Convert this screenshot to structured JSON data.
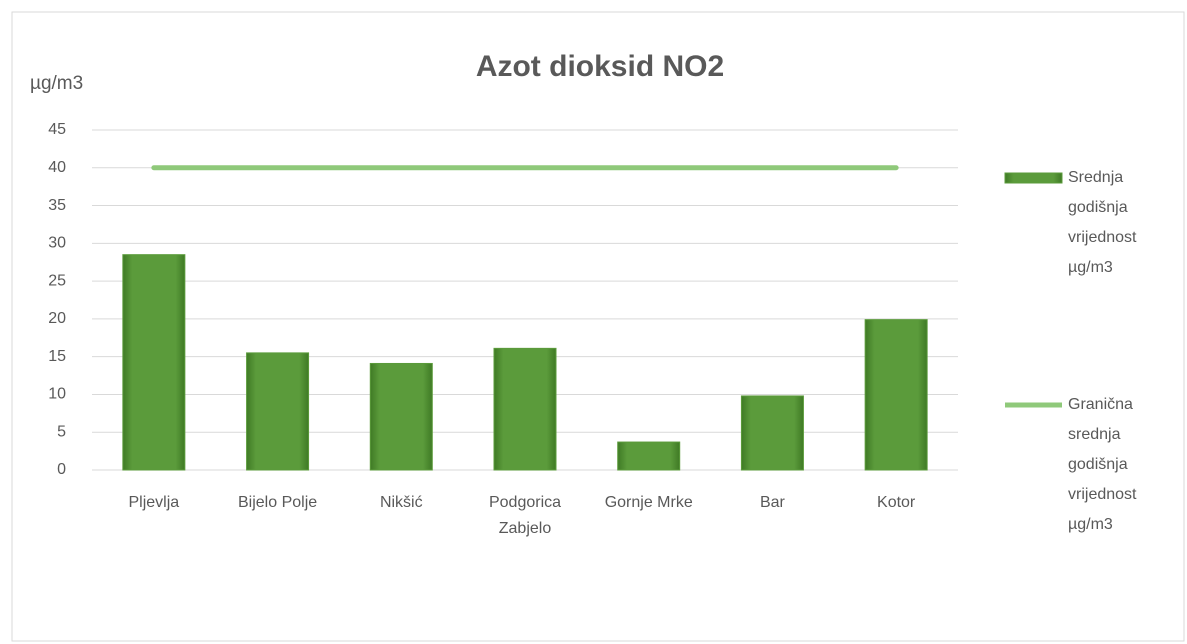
{
  "chart_data": {
    "type": "bar",
    "title": "Azot dioksid NO2",
    "y_label": "µg/m3",
    "categories": [
      "Pljevlja",
      "Bijelo Polje",
      "Nikšić",
      "Podgorica Zabjelo",
      "Gornje Mrke",
      "Bar",
      "Kotor"
    ],
    "series": [
      {
        "name": "Srednja godišnja vrijednost µg/m3",
        "type": "bar",
        "color": "#5b9b3b",
        "values": [
          28.5,
          15.5,
          14.1,
          16.1,
          3.7,
          9.8,
          19.9
        ]
      },
      {
        "name": "Granična srednja godišnja vrijednost µg/m3",
        "type": "line",
        "color": "#8fc97a",
        "values": [
          40,
          40,
          40,
          40,
          40,
          40,
          40
        ]
      }
    ],
    "ylim": [
      0,
      45
    ],
    "yticks": [
      0,
      5,
      10,
      15,
      20,
      25,
      30,
      35,
      40,
      45
    ],
    "grid": true,
    "legend": "right"
  }
}
